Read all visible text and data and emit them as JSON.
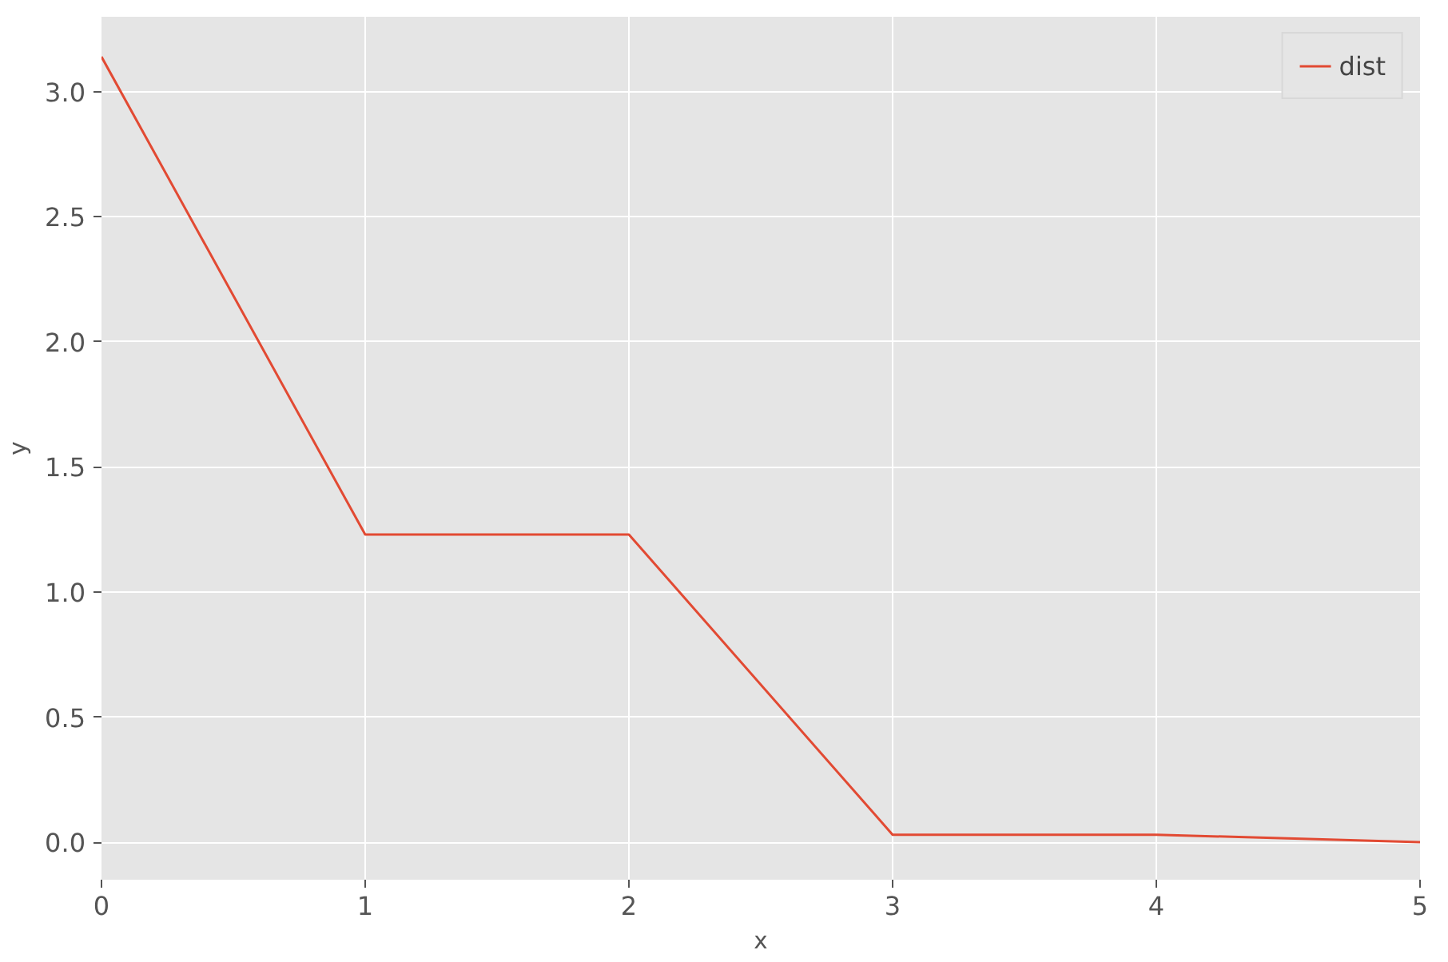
{
  "chart_data": {
    "type": "line",
    "xlabel": "x",
    "ylabel": "y",
    "x": [
      0,
      1,
      2,
      3,
      4,
      5
    ],
    "series": [
      {
        "name": "dist",
        "color": "#e24a33",
        "values": [
          3.14,
          1.23,
          1.23,
          0.03,
          0.03,
          0.0
        ]
      }
    ],
    "xlim": [
      0,
      5
    ],
    "ylim": [
      -0.15,
      3.3
    ],
    "xticks": [
      0,
      1,
      2,
      3,
      4,
      5
    ],
    "yticks": [
      {
        "value": 0,
        "label": "0.0"
      },
      {
        "value": 0.5,
        "label": "0.5"
      },
      {
        "value": 1,
        "label": "1.0"
      },
      {
        "value": 1.5,
        "label": "1.5"
      },
      {
        "value": 2,
        "label": "2.0"
      },
      {
        "value": 2.5,
        "label": "2.5"
      },
      {
        "value": 3,
        "label": "3.0"
      }
    ],
    "grid": true,
    "legend": "top right",
    "line_style": "solid"
  }
}
